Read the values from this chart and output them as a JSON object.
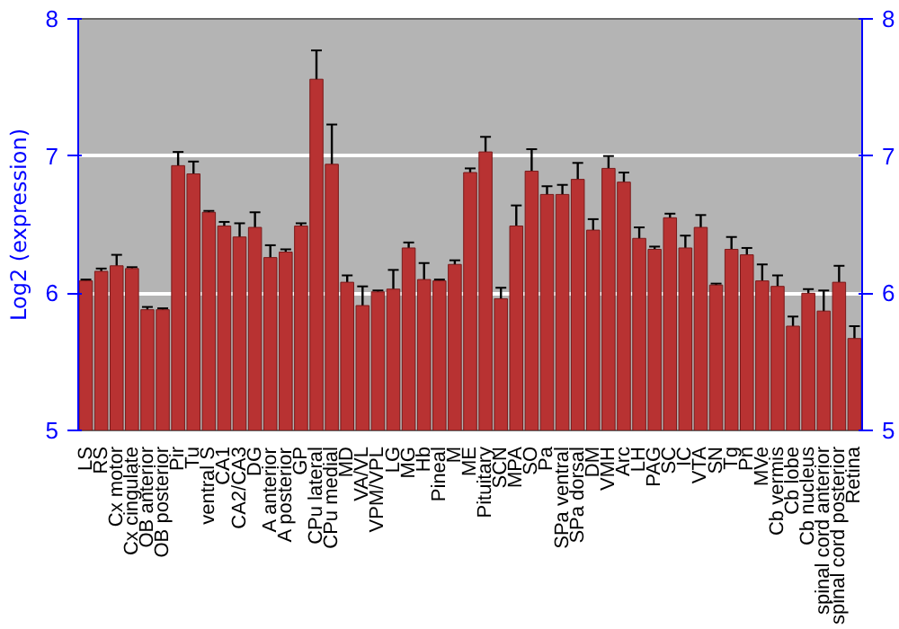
{
  "chart_data": {
    "type": "bar",
    "ylabel": "Log2 (expression)",
    "categories": [
      "LS",
      "RS",
      "Cx motor",
      "Cx cingulate",
      "OB anterior",
      "OB posterior",
      "Pir",
      "Tu",
      "ventral S",
      "CA1",
      "CA2/CA3",
      "DG",
      "A anterior",
      "A posterior",
      "GP",
      "CPu lateral",
      "CPu medial",
      "MD",
      "VA/VL",
      "VPM/VPL",
      "LG",
      "MG",
      "Hb",
      "Pineal",
      "M",
      "ME",
      "Pituitary",
      "SCN",
      "MPA",
      "SO",
      "Pa",
      "SPa ventral",
      "SPa dorsal",
      "DM",
      "VMH",
      "Arc",
      "LH",
      "PAG",
      "SC",
      "IC",
      "VTA",
      "SN",
      "Tg",
      "Pn",
      "MVe",
      "Cb vermis",
      "Cb lobe",
      "Cb nucleus",
      "spinal cord anterior",
      "spinal cord posterior",
      "Retina"
    ],
    "values": [
      6.09,
      6.16,
      6.2,
      6.18,
      5.88,
      5.88,
      6.93,
      6.87,
      6.59,
      6.49,
      6.41,
      6.48,
      6.26,
      6.3,
      6.49,
      7.56,
      6.94,
      6.08,
      5.91,
      6.01,
      6.03,
      6.33,
      6.1,
      6.09,
      6.21,
      6.88,
      7.03,
      5.96,
      6.49,
      6.89,
      6.72,
      6.72,
      6.83,
      6.46,
      6.91,
      6.81,
      6.4,
      6.32,
      6.55,
      6.33,
      6.48,
      6.06,
      6.32,
      6.28,
      6.09,
      6.05,
      5.76,
      6.0,
      5.87,
      6.08,
      5.67
    ],
    "errors": [
      0.01,
      0.02,
      0.08,
      0.01,
      0.02,
      0.01,
      0.1,
      0.09,
      0.01,
      0.03,
      0.1,
      0.11,
      0.09,
      0.02,
      0.02,
      0.21,
      0.29,
      0.05,
      0.14,
      0.01,
      0.14,
      0.04,
      0.12,
      0.01,
      0.03,
      0.03,
      0.11,
      0.08,
      0.15,
      0.16,
      0.06,
      0.07,
      0.12,
      0.08,
      0.09,
      0.07,
      0.08,
      0.02,
      0.03,
      0.09,
      0.09,
      0.01,
      0.09,
      0.05,
      0.12,
      0.08,
      0.07,
      0.03,
      0.15,
      0.12,
      0.09
    ],
    "color": "#b83232",
    "ylim": [
      5,
      8
    ],
    "yticks": [
      5,
      6,
      7,
      8
    ],
    "y2lim": [
      5,
      8
    ],
    "y2ticks": [
      5,
      6,
      7,
      8
    ],
    "grid": "y"
  }
}
